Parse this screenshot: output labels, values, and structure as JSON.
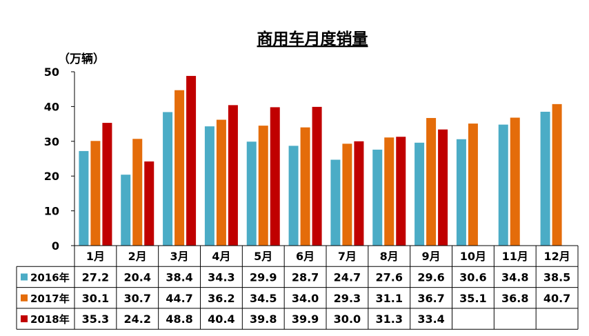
{
  "chart_data": {
    "type": "bar",
    "title": "商用车月度销量",
    "y_unit": "（万辆）",
    "ylim": [
      0,
      50
    ],
    "y_ticks": [
      0,
      10,
      20,
      30,
      40,
      50
    ],
    "grid": false,
    "legend": "data-table-left",
    "categories": [
      "1月",
      "2月",
      "3月",
      "4月",
      "5月",
      "6月",
      "7月",
      "8月",
      "9月",
      "10月",
      "11月",
      "12月"
    ],
    "series": [
      {
        "name": "2016年",
        "color": "#4BACC6",
        "values": [
          27.2,
          20.4,
          38.4,
          34.3,
          29.9,
          28.7,
          24.7,
          27.6,
          29.6,
          30.6,
          34.8,
          38.5
        ],
        "labels": [
          "27.2",
          "20.4",
          "38.4",
          "34.3",
          "29.9",
          "28.7",
          "24.7",
          "27.6",
          "29.6",
          "30.6",
          "34.8",
          "38.5"
        ]
      },
      {
        "name": "2017年",
        "color": "#E46C0A",
        "values": [
          30.1,
          30.7,
          44.7,
          36.2,
          34.5,
          34.0,
          29.3,
          31.1,
          36.7,
          35.1,
          36.8,
          40.7
        ],
        "labels": [
          "30.1",
          "30.7",
          "44.7",
          "36.2",
          "34.5",
          "34.0",
          "29.3",
          "31.1",
          "36.7",
          "35.1",
          "36.8",
          "40.7"
        ]
      },
      {
        "name": "2018年",
        "color": "#C00000",
        "values": [
          35.3,
          24.2,
          48.8,
          40.4,
          39.8,
          39.9,
          30.0,
          31.3,
          33.4,
          null,
          null,
          null
        ],
        "labels": [
          "35.3",
          "24.2",
          "48.8",
          "40.4",
          "39.8",
          "39.9",
          "30.0",
          "31.3",
          "33.4",
          "",
          "",
          ""
        ]
      }
    ]
  }
}
